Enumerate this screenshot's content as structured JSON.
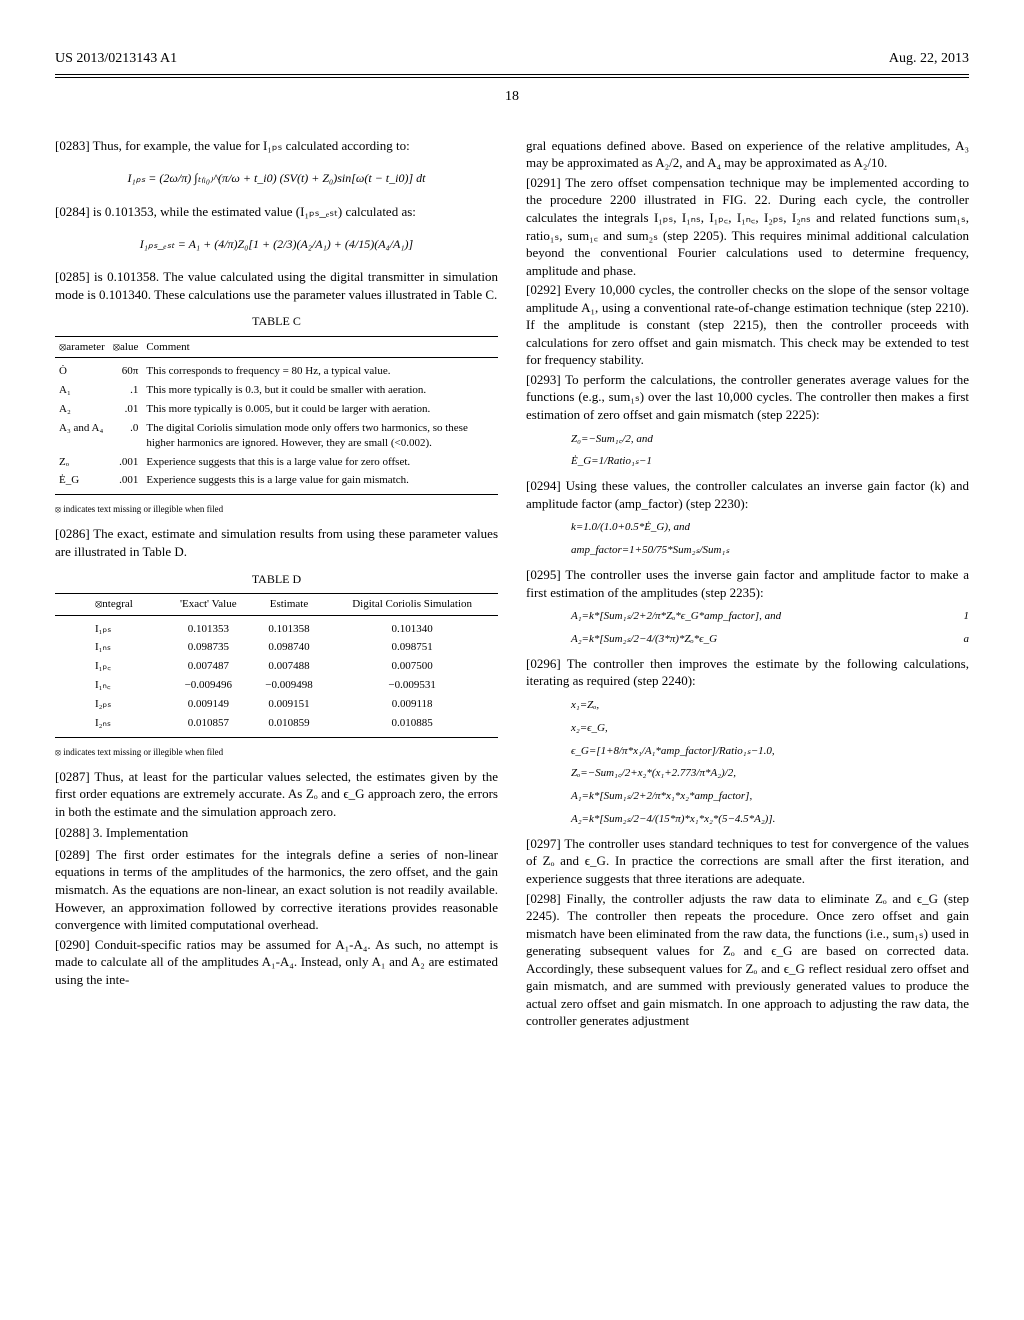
{
  "header": {
    "pub_number": "US 2013/0213143 A1",
    "pub_date": "Aug. 22, 2013",
    "page_number": "18"
  },
  "left": {
    "p0283": "[0283]   Thus, for example, the value for I₁ₚₛ calculated according to:",
    "formula1": "I₁ₚₛ = (2ω/π) ∫ₜ₍ᵢ₀₎^(π/ω + t_i0)  (SV(t) + Z₀)sin[ω(t − t_i0)] dt",
    "p0284": "[0284]   is 0.101353, while the estimated value (I₁ₚₛ_ₑₛₜ) calculated as:",
    "formula2": "I₁ₚₛ_ₑₛₜ = A₁ + (4/π)Z₀[1 + (2/3)(A₂/A₁) + (4/15)(A₄/A₁)]",
    "p0285": "[0285]   is 0.101358. The value calculated using the digital transmitter in simulation mode is 0.101340. These calculations use the parameter values illustrated in Table C.",
    "tableC": {
      "title": "TABLE C",
      "header": [
        "⦻arameter",
        "⦻alue",
        "Comment"
      ],
      "rows": [
        [
          "Ȯ",
          "60π",
          "This corresponds to frequency = 80 Hz, a typical value."
        ],
        [
          "A₁",
          ".1",
          "This more typically is 0.3, but it could be smaller with aeration."
        ],
        [
          "A₂",
          ".01",
          "This more typically is 0.005, but it could be larger with aeration."
        ],
        [
          "A₃ and A₄",
          ".0",
          "The digital Coriolis simulation mode only offers two harmonics, so these higher harmonics are ignored. However, they are small (<0.002)."
        ],
        [
          "Zₒ",
          ".001",
          "Experience suggests that this is a large value for zero offset."
        ],
        [
          "Ė_G",
          ".001",
          "Experience suggests this is a large value for gain mismatch."
        ]
      ]
    },
    "footnoteC": "⦻ indicates text missing or illegible when filed",
    "p0286": "[0286]   The exact, estimate and simulation results from using these parameter values are illustrated in Table D.",
    "tableD": {
      "title": "TABLE D",
      "header": [
        "⦻ntegral",
        "'Exact' Value",
        "Estimate",
        "Digital Coriolis Simulation"
      ],
      "rows": [
        [
          "I₁ₚₛ",
          "0.101353",
          "0.101358",
          "0.101340"
        ],
        [
          "I₁ₙₛ",
          "0.098735",
          "0.098740",
          "0.098751"
        ],
        [
          "I₁ₚ꜀",
          "0.007487",
          "0.007488",
          "0.007500"
        ],
        [
          "I₁ₙ꜀",
          "−0.009496",
          "−0.009498",
          "−0.009531"
        ],
        [
          "I₂ₚₛ",
          "0.009149",
          "0.009151",
          "0.009118"
        ],
        [
          "I₂ₙₛ",
          "0.010857",
          "0.010859",
          "0.010885"
        ]
      ]
    },
    "footnoteD": "⦻ indicates text missing or illegible when filed",
    "p0287": "[0287]   Thus, at least for the particular values selected, the estimates given by the first order equations are extremely accurate. As Zₒ and ϵ_G approach zero, the errors in both the estimate and the simulation approach zero.",
    "p0288": "[0288]   3. Implementation",
    "p0289": "[0289]   The first order estimates for the integrals define a series of non-linear equations in terms of the amplitudes of the harmonics, the zero offset, and the gain mismatch. As the equations are non-linear, an exact solution is not readily available. However, an approximation followed by corrective iterations provides reasonable convergence with limited computational overhead.",
    "p0290": "[0290]   Conduit-specific ratios may be assumed for A₁-A₄. As such, no attempt is made to calculate all of the amplitudes A₁-A₄. Instead, only A₁ and A₂ are estimated using the inte-"
  },
  "right": {
    "p_cont": "gral equations defined above. Based on experience of the relative amplitudes, A₃ may be approximated as A₂/2, and A₄ may be approximated as A₂/10.",
    "p0291": "[0291]   The zero offset compensation technique may be implemented according to the procedure 2200 illustrated in FIG. 22. During each cycle, the controller calculates the integrals I₁ₚₛ, I₁ₙₛ, I₁ₚ꜀, I₁ₙ꜀, I₂ₚₛ, I₂ₙₛ and related functions sum₁ₛ, ratio₁ₛ, sum₁꜀ and sum₂ₛ (step 2205). This requires minimal additional calculation beyond the conventional Fourier calculations used to determine frequency, amplitude and phase.",
    "p0292": "[0292]   Every 10,000 cycles, the controller checks on the slope of the sensor voltage amplitude A₁, using a conventional rate-of-change estimation technique (step 2210). If the amplitude is constant (step 2215), then the controller proceeds with calculations for zero offset and gain mismatch. This check may be extended to test for frequency stability.",
    "p0293": "[0293]   To perform the calculations, the controller generates average values for the functions (e.g., sum₁ₛ) over the last 10,000 cycles. The controller then makes a first estimation of zero offset and gain mismatch (step 2225):",
    "formula3a": "Z₀=−Sum₁꜀/2, and",
    "formula3b": "Ė_G=1/Ratio₁ₛ−1",
    "p0294": "[0294]   Using these values, the controller calculates an inverse gain factor (k) and amplitude factor (amp_factor) (step 2230):",
    "formula4a": "k=1.0/(1.0+0.5*Ė_G), and",
    "formula4b": "amp_factor=1+50/75*Sum₂ₛ/Sum₁ₛ",
    "p0295": "[0295]   The controller uses the inverse gain factor and amplitude factor to make a first estimation of the amplitudes (step 2235):",
    "formula5a": "A₁=k*[Sum₁ₛ/2+2/π*Zₒ*ϵ_G*amp_factor], and",
    "formula5a_num": "1",
    "formula5b": "A₂=k*[Sum₂ₛ/2−4/(3*π)*Zₒ*ϵ_G",
    "formula5b_num": "a",
    "p0296": "[0296]   The controller then improves the estimate by the following calculations, iterating as required (step 2240):",
    "formula6a": "x₁=Zₒ,",
    "formula6b": "x₂=ϵ_G,",
    "formula6c": "ϵ_G=[1+8/π*x₁/A₁*amp_factor]/Ratio₁ₛ−1.0,",
    "formula6d": "Zₒ=−Sum₁꜀/2+x₂*(x₁+2.773/π*A₂)/2,",
    "formula6e": "A₁=k*[Sum₁ₛ/2+2/π*x₁*x₂*amp_factor],",
    "formula6f": "A₂=k*[Sum₂ₛ/2−4/(15*π)*x₁*x₂*(5−4.5*A₂)].",
    "p0297": "[0297]   The controller uses standard techniques to test for convergence of the values of Zₒ and ϵ_G. In practice the corrections are small after the first iteration, and experience suggests that three iterations are adequate.",
    "p0298": "[0298]   Finally, the controller adjusts the raw data to eliminate Zₒ and ϵ_G (step 2245). The controller then repeats the procedure. Once zero offset and gain mismatch have been eliminated from the raw data, the functions (i.e., sum₁ₛ) used in generating subsequent values for Zₒ and ϵ_G are based on corrected data. Accordingly, these subsequent values for Zₒ and ϵ_G reflect residual zero offset and gain mismatch, and are summed with previously generated values to produce the actual zero offset and gain mismatch. In one approach to adjusting the raw data, the controller generates adjustment"
  }
}
